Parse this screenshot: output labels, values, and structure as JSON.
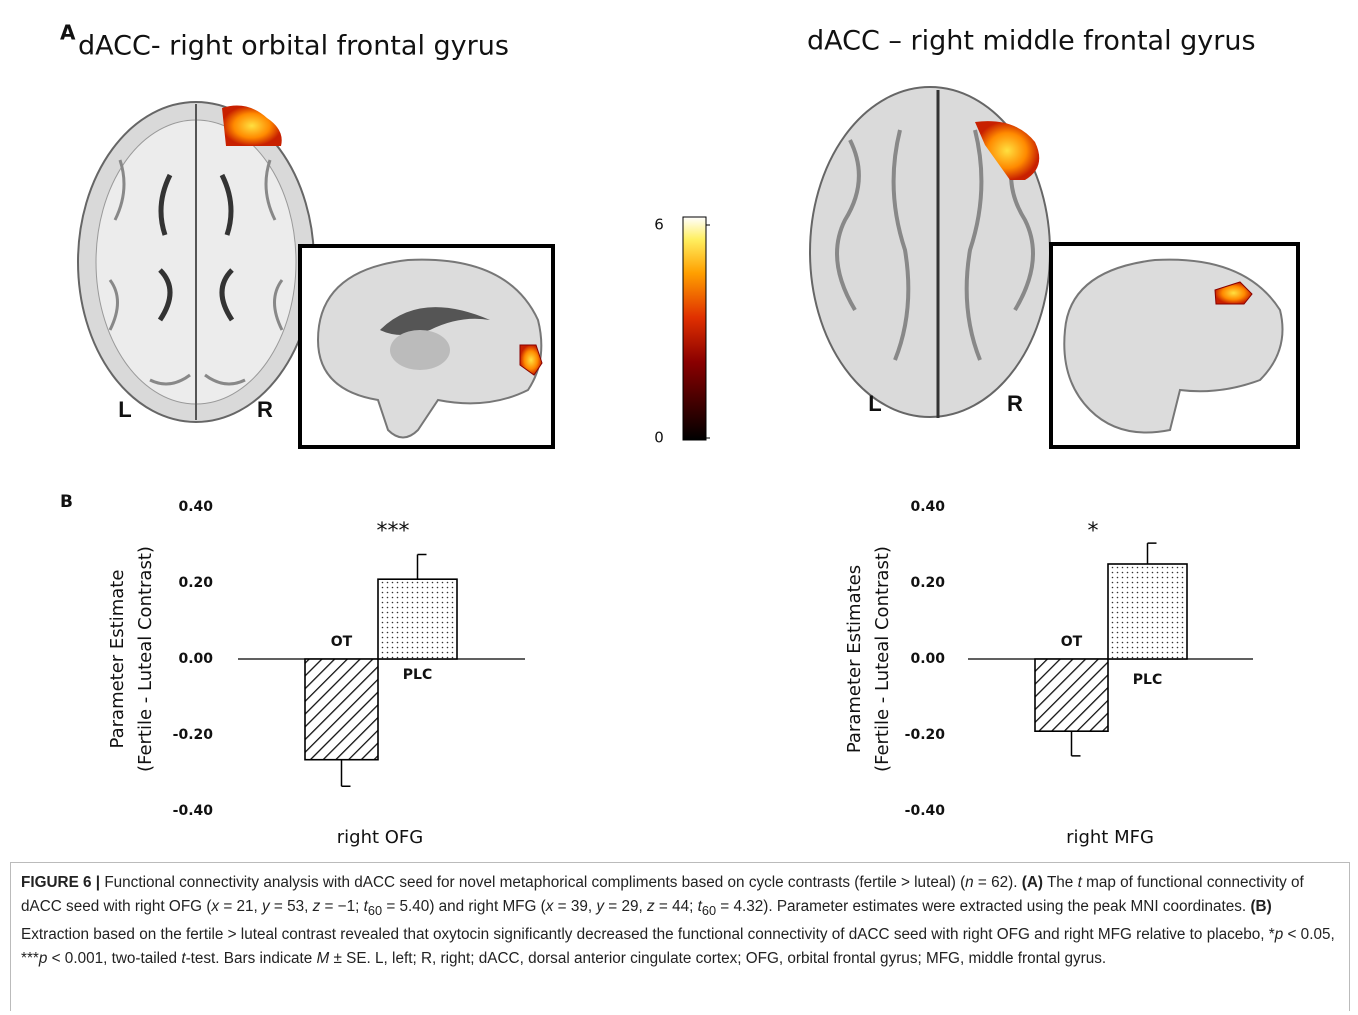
{
  "panel_a": {
    "label": "A",
    "left_title": "dACC- right orbital frontal gyrus",
    "right_title": "dACC – right middle frontal gyrus",
    "left_l": "L",
    "left_r": "R",
    "right_l": "L",
    "right_r": "R",
    "colorbar": {
      "lim": [
        0,
        6
      ],
      "ticks": [
        0,
        6
      ]
    }
  },
  "panel_b": {
    "label": "B"
  },
  "chart_data": [
    {
      "type": "bar",
      "ylabel": [
        "Parameter Estimate",
        "(Fertile - Luteal Contrast)"
      ],
      "xlabel": "right OFG",
      "annotation": "***",
      "categories": [
        "OT",
        "PLC"
      ],
      "values": [
        -0.265,
        0.21
      ],
      "errors": [
        0.07,
        0.065
      ],
      "ylim": [
        -0.4,
        0.4
      ],
      "yticks": [
        {
          "value": 0.4,
          "label": "0.40"
        },
        {
          "value": 0.2,
          "label": "0.20"
        },
        {
          "value": 0,
          "label": "0.00"
        },
        {
          "value": -0.2,
          "label": "-0.20"
        },
        {
          "value": -0.4,
          "label": "-0.40"
        }
      ]
    },
    {
      "type": "bar",
      "ylabel": [
        "Parameter Estimates",
        "(Fertile - Luteal Contrast)"
      ],
      "xlabel": "right MFG",
      "annotation": "*",
      "categories": [
        "OT",
        "PLC"
      ],
      "values": [
        -0.19,
        0.25
      ],
      "errors": [
        0.065,
        0.055
      ],
      "ylim": [
        -0.4,
        0.4
      ],
      "yticks": [
        {
          "value": 0.4,
          "label": "0.40"
        },
        {
          "value": 0.2,
          "label": "0.20"
        },
        {
          "value": 0,
          "label": "0.00"
        },
        {
          "value": -0.2,
          "label": "-0.20"
        },
        {
          "value": -0.4,
          "label": "-0.40"
        }
      ]
    }
  ],
  "caption": [
    "FIGURE 6 |",
    " Functional connectivity analysis with dACC seed for novel metaphorical compliments based on cycle contrasts (fertile > luteal) (",
    "n",
    " = 62). ",
    "(A)",
    " The ",
    "t",
    " map of functional connectivity of dACC seed with right OFG (",
    "x",
    " = 21, ",
    "y",
    " = 53, ",
    "z",
    " = −1; ",
    "t",
    "60",
    " = 5.40) and right MFG (",
    "x",
    " = 39, ",
    "y",
    " = 29, ",
    "z",
    " = 44; ",
    "t",
    "60",
    " = 4.32). Parameter estimates were extracted using the peak MNI coordinates. ",
    "(B)",
    " Extraction based on the fertile > luteal contrast revealed that oxytocin significantly decreased the functional connectivity of dACC seed with right OFG and right MFG relative to placebo, *",
    "p",
    " < 0.05, ***",
    "p",
    " < 0.001, two-tailed ",
    "t",
    "-test. Bars indicate ",
    "M",
    " ± SE. L, left; R, right; dACC, dorsal anterior cingulate cortex; OFG, orbital frontal gyrus; MFG, middle frontal gyrus."
  ]
}
